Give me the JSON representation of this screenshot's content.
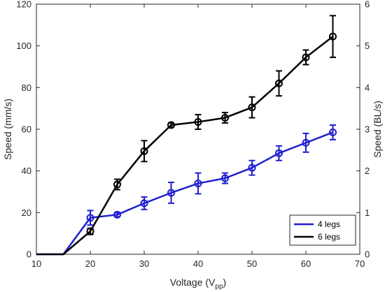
{
  "chart_data": {
    "type": "line",
    "xlabel_main": "Voltage (V",
    "xlabel_sub": "pp",
    "xlabel_close": ")",
    "ylabel": "Speed (mm/s)",
    "ylabel_right": "Speed (BL/s)",
    "xlim": [
      10,
      70
    ],
    "ylim": [
      0,
      120
    ],
    "ylim_right": [
      0,
      6
    ],
    "xticks": [
      10,
      20,
      30,
      40,
      50,
      60,
      70
    ],
    "yticks": [
      0,
      20,
      40,
      60,
      80,
      100,
      120
    ],
    "yticks_right": [
      0,
      1,
      2,
      3,
      4,
      5,
      6
    ],
    "grid": false,
    "legend_position": "bottom-right",
    "series": [
      {
        "name": "4 legs",
        "color": "#1f1fd0",
        "x": [
          10,
          15,
          20,
          25,
          30,
          35,
          40,
          45,
          50,
          55,
          60,
          65
        ],
        "y": [
          0,
          0,
          17.5,
          19,
          24.5,
          29.5,
          34,
          36.5,
          41.5,
          48.5,
          53.5,
          58.5
        ],
        "err": [
          null,
          null,
          3.5,
          1,
          3,
          5,
          5,
          2.5,
          3.5,
          3.5,
          4.5,
          3.5
        ],
        "markers": [
          false,
          false,
          true,
          true,
          true,
          true,
          true,
          true,
          true,
          true,
          true,
          true
        ]
      },
      {
        "name": "6 legs",
        "color": "#000000",
        "x": [
          10,
          15,
          20,
          25,
          30,
          35,
          40,
          45,
          50,
          55,
          60,
          65
        ],
        "y": [
          0,
          0,
          11,
          33.5,
          49.5,
          62,
          63.5,
          65.5,
          70.5,
          82,
          94.5,
          104.5
        ],
        "err": [
          null,
          null,
          1.5,
          2.5,
          5,
          1,
          3.5,
          2.5,
          5,
          6,
          3.5,
          10
        ],
        "markers": [
          false,
          false,
          true,
          true,
          true,
          true,
          true,
          true,
          true,
          true,
          true,
          true
        ]
      }
    ]
  }
}
